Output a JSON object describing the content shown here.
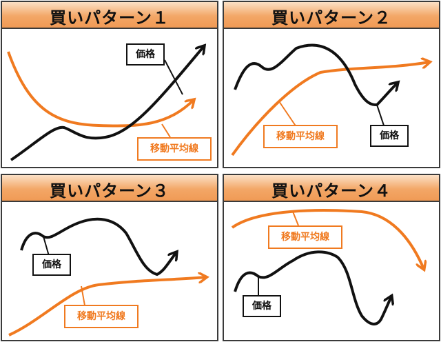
{
  "colors": {
    "price_line": "#111111",
    "ma_line": "#f07a20",
    "header_fill": "#f3a767",
    "border": "#3a3a3a"
  },
  "panels": [
    {
      "title": "買いパターン１",
      "price_label": "価格",
      "ma_label": "移動平均線"
    },
    {
      "title": "買いパターン２",
      "price_label": "価格",
      "ma_label": "移動平均線"
    },
    {
      "title": "買いパターン３",
      "price_label": "価格",
      "ma_label": "移動平均線"
    },
    {
      "title": "買いパターン４",
      "price_label": "価格",
      "ma_label": "移動平均線"
    }
  ]
}
